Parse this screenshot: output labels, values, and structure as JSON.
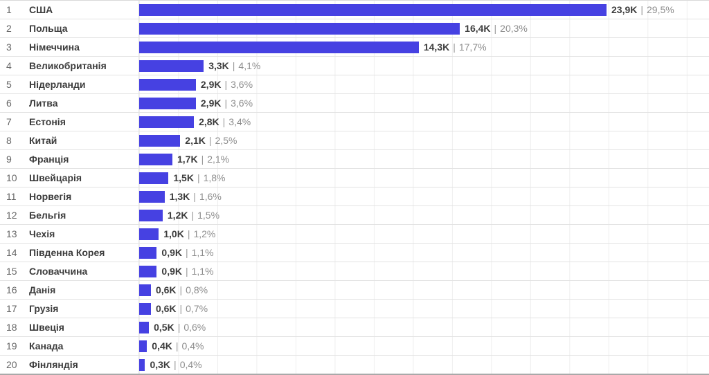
{
  "chart_data": {
    "type": "bar",
    "orientation": "horizontal",
    "title": "",
    "xlabel": "",
    "ylabel": "",
    "unit": "K",
    "axis_max_k": 29.14,
    "grid_step_k": 2,
    "grid": true,
    "bar_color": "#4641e2",
    "value_separator": "|",
    "rows": [
      {
        "rank": "1",
        "country": "США",
        "value_k": 23.9,
        "value_label": "23,9K",
        "percent_label": "29,5%"
      },
      {
        "rank": "2",
        "country": "Польща",
        "value_k": 16.4,
        "value_label": "16,4K",
        "percent_label": "20,3%"
      },
      {
        "rank": "3",
        "country": "Німеччина",
        "value_k": 14.3,
        "value_label": "14,3K",
        "percent_label": "17,7%"
      },
      {
        "rank": "4",
        "country": "Великобританія",
        "value_k": 3.3,
        "value_label": "3,3K",
        "percent_label": "4,1%"
      },
      {
        "rank": "5",
        "country": "Нідерланди",
        "value_k": 2.9,
        "value_label": "2,9K",
        "percent_label": "3,6%"
      },
      {
        "rank": "6",
        "country": "Литва",
        "value_k": 2.9,
        "value_label": "2,9K",
        "percent_label": "3,6%"
      },
      {
        "rank": "7",
        "country": "Естонія",
        "value_k": 2.8,
        "value_label": "2,8K",
        "percent_label": "3,4%"
      },
      {
        "rank": "8",
        "country": "Китай",
        "value_k": 2.1,
        "value_label": "2,1K",
        "percent_label": "2,5%"
      },
      {
        "rank": "9",
        "country": "Франція",
        "value_k": 1.7,
        "value_label": "1,7K",
        "percent_label": "2,1%"
      },
      {
        "rank": "10",
        "country": "Швейцарія",
        "value_k": 1.5,
        "value_label": "1,5K",
        "percent_label": "1,8%"
      },
      {
        "rank": "11",
        "country": "Норвегія",
        "value_k": 1.3,
        "value_label": "1,3K",
        "percent_label": "1,6%"
      },
      {
        "rank": "12",
        "country": "Бельгія",
        "value_k": 1.2,
        "value_label": "1,2K",
        "percent_label": "1,5%"
      },
      {
        "rank": "13",
        "country": "Чехія",
        "value_k": 1.0,
        "value_label": "1,0K",
        "percent_label": "1,2%"
      },
      {
        "rank": "14",
        "country": "Південна Корея",
        "value_k": 0.9,
        "value_label": "0,9K",
        "percent_label": "1,1%"
      },
      {
        "rank": "15",
        "country": "Словаччина",
        "value_k": 0.9,
        "value_label": "0,9K",
        "percent_label": "1,1%"
      },
      {
        "rank": "16",
        "country": "Данія",
        "value_k": 0.6,
        "value_label": "0,6K",
        "percent_label": "0,8%"
      },
      {
        "rank": "17",
        "country": "Грузія",
        "value_k": 0.6,
        "value_label": "0,6K",
        "percent_label": "0,7%"
      },
      {
        "rank": "18",
        "country": "Швеція",
        "value_k": 0.5,
        "value_label": "0,5K",
        "percent_label": "0,6%"
      },
      {
        "rank": "19",
        "country": "Канада",
        "value_k": 0.4,
        "value_label": "0,4K",
        "percent_label": "0,4%"
      },
      {
        "rank": "20",
        "country": "Фінляндія",
        "value_k": 0.3,
        "value_label": "0,3K",
        "percent_label": "0,4%"
      }
    ]
  }
}
